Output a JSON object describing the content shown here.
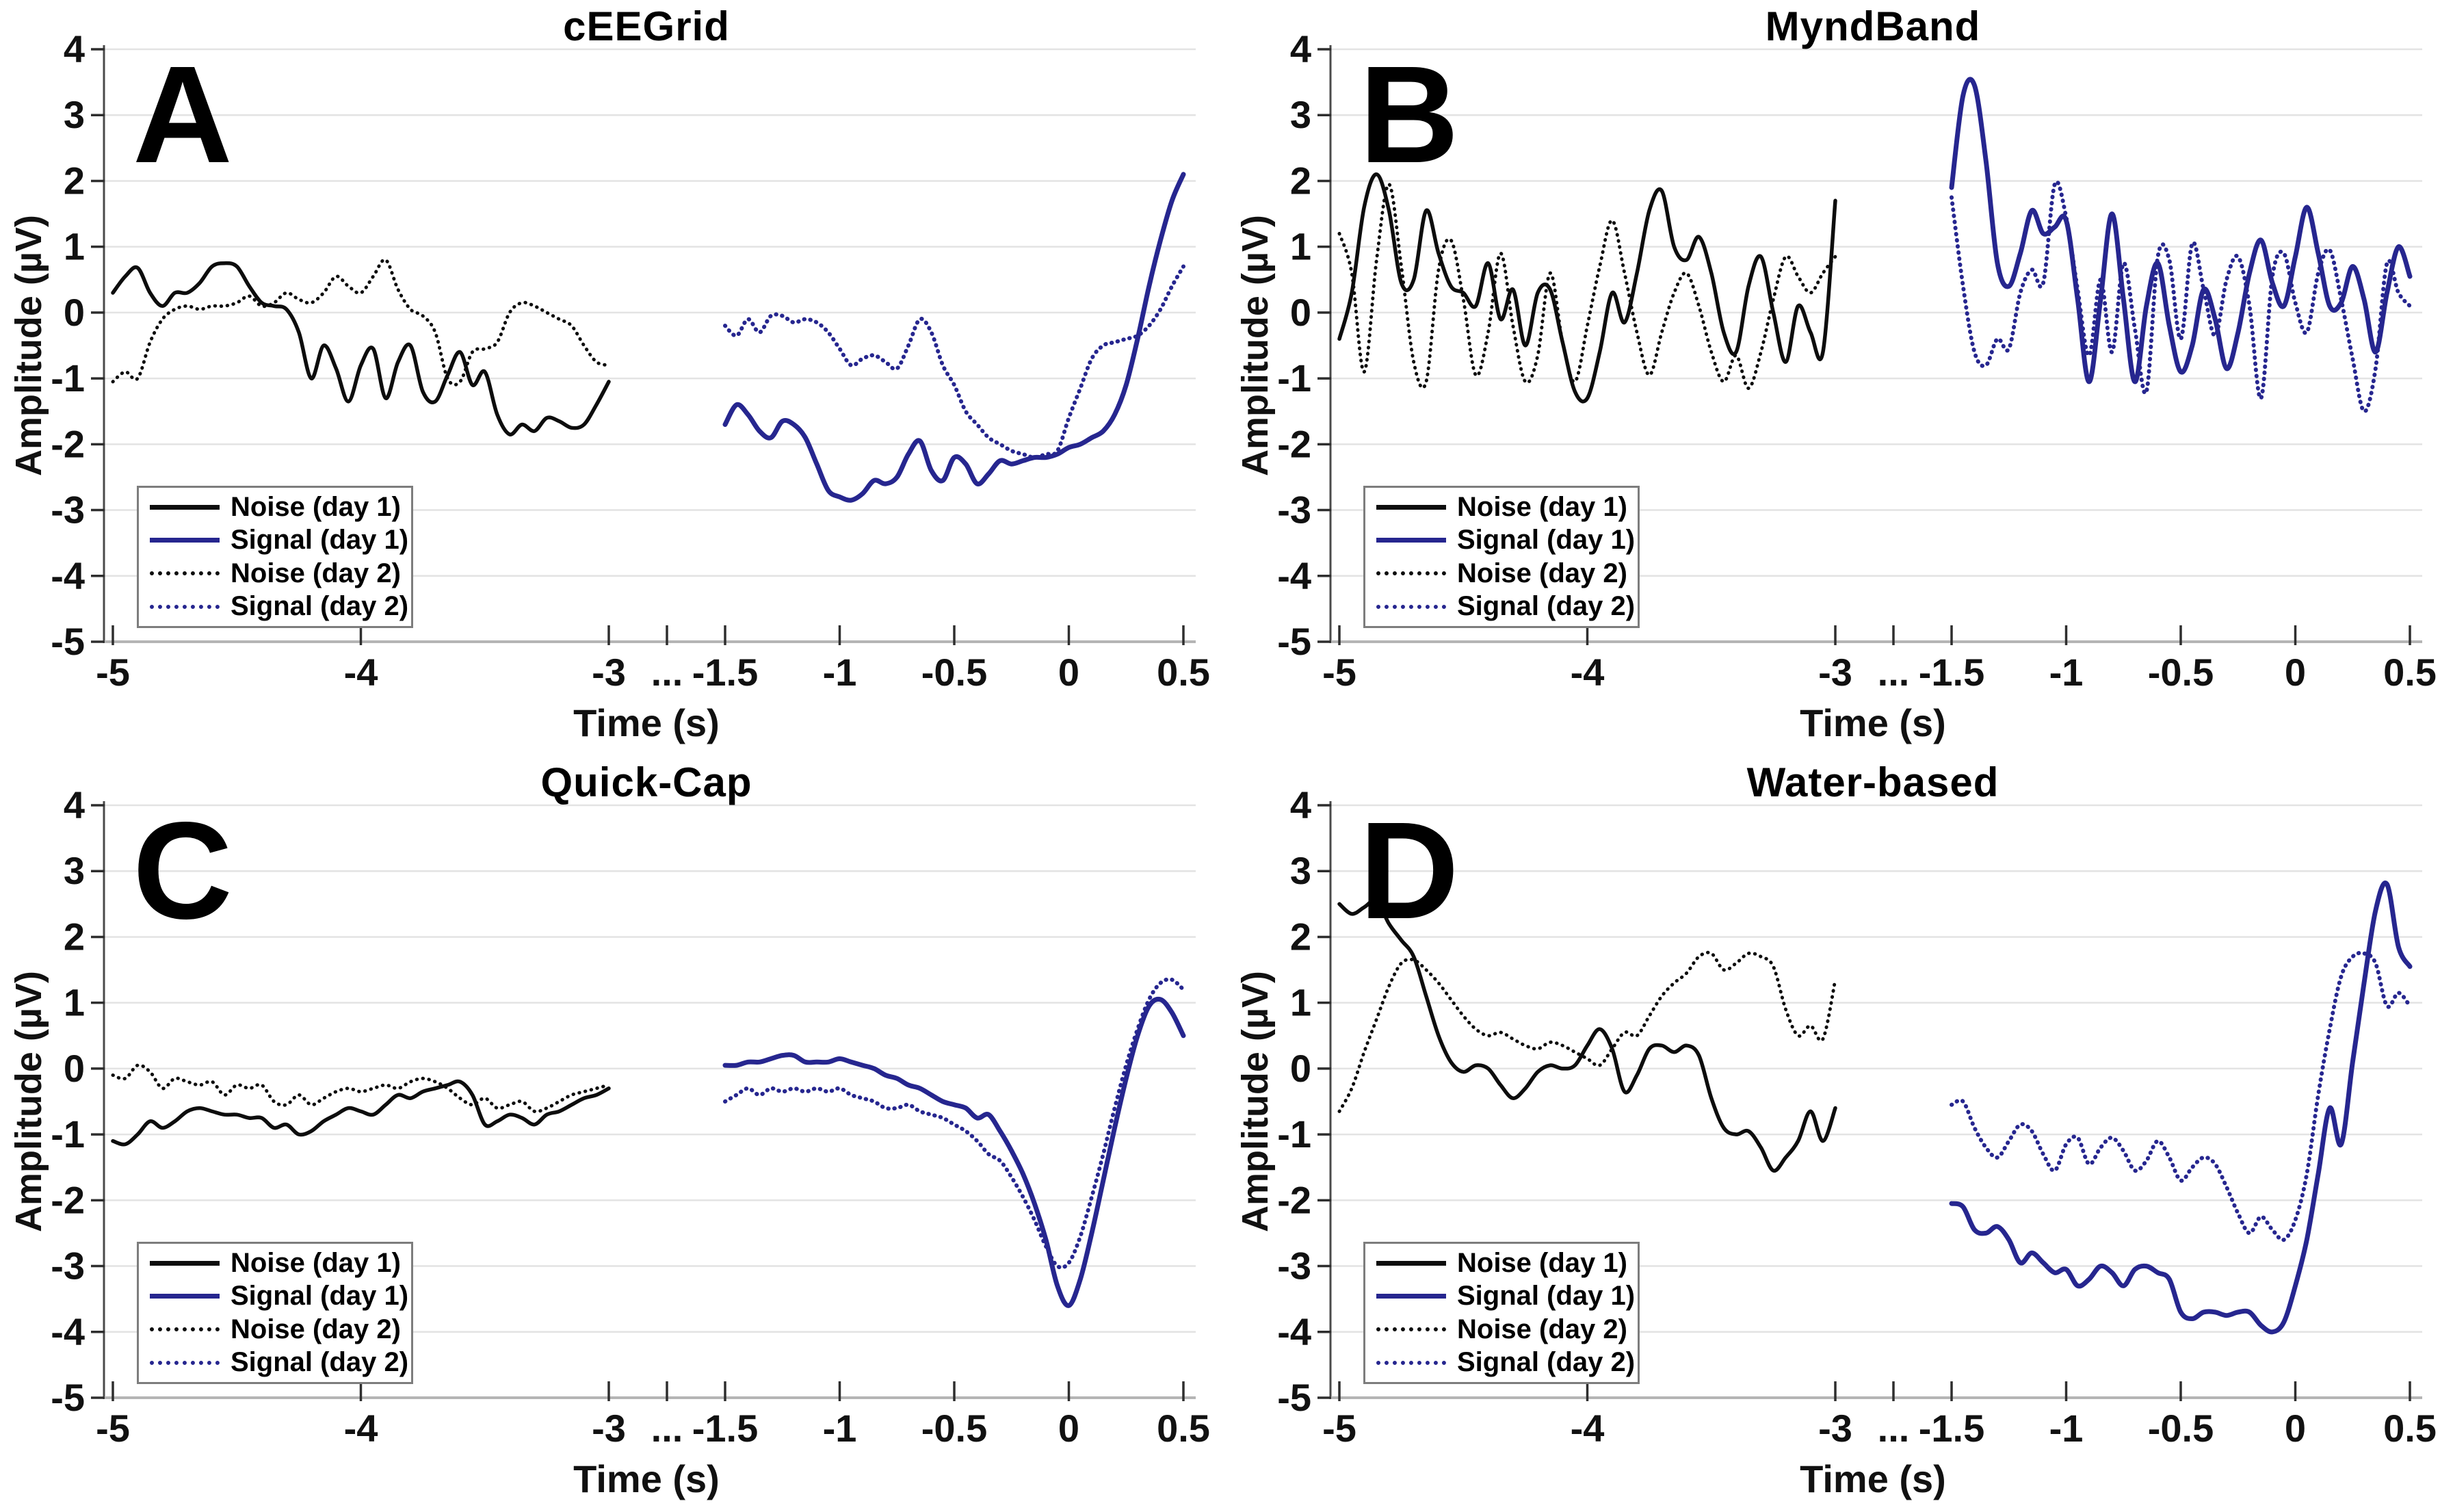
{
  "figure": {
    "background": "#ffffff",
    "y_axis_label": "Amplitude (µV)",
    "x_axis_label": "Time (s)",
    "y_ticks": [
      4,
      3,
      2,
      1,
      0,
      -1,
      -2,
      -3,
      -4,
      -5
    ],
    "x_ticks_left": [
      "-5",
      "-4",
      "-3"
    ],
    "x_break_label": "...",
    "x_ticks_right": [
      "-1.5",
      "-1",
      "-0.5",
      "0",
      "0.5"
    ],
    "colors": {
      "black": "#0d0d0d",
      "blue": "#26268f",
      "grid": "#e3e3e3",
      "axis_x": "#b5b5b5",
      "axis_y": "#4a4a4a",
      "tick": "#2e2e2e",
      "text": "#111111",
      "legend_border": "#7d7d7d"
    }
  },
  "legend": {
    "items": [
      {
        "label": "Noise (day 1)",
        "color": "black",
        "style": "solid"
      },
      {
        "label": "Signal (day 1)",
        "color": "blue",
        "style": "solid"
      },
      {
        "label": "Noise (day 2)",
        "color": "black",
        "style": "dotted"
      },
      {
        "label": "Signal (day 2)",
        "color": "blue",
        "style": "dotted"
      }
    ]
  },
  "chart_data": [
    {
      "type": "line",
      "panel_label": "A",
      "title": "cEEGrid",
      "xlabel": "Time (s)",
      "ylabel": "Amplitude (µV)",
      "ylim": [
        -5,
        4
      ],
      "x_axis": {
        "left_range": [
          -5,
          -3
        ],
        "right_range": [
          -1.5,
          0.5
        ],
        "break": true,
        "step": 0.05
      },
      "grid": "horizontal",
      "legend_position": "lower-left",
      "series": [
        {
          "name": "Noise (day 1)",
          "color": "black",
          "style": "solid",
          "segment": "left",
          "x_start": -5,
          "x_step": 0.05,
          "values": [
            0.3,
            0.55,
            0.68,
            0.3,
            0.1,
            0.3,
            0.3,
            0.45,
            0.7,
            0.75,
            0.7,
            0.4,
            0.15,
            0.1,
            0.05,
            -0.3,
            -1.0,
            -0.5,
            -0.85,
            -1.35,
            -0.8,
            -0.55,
            -1.3,
            -0.75,
            -0.5,
            -1.2,
            -1.35,
            -0.95,
            -0.6,
            -1.1,
            -0.9,
            -1.55,
            -1.85,
            -1.7,
            -1.8,
            -1.6,
            -1.65,
            -1.75,
            -1.7,
            -1.4,
            -1.05
          ]
        },
        {
          "name": "Signal (day 1)",
          "color": "blue",
          "style": "solid",
          "segment": "right",
          "x_start": -1.5,
          "x_step": 0.05,
          "values": [
            -1.7,
            -1.4,
            -1.55,
            -1.8,
            -1.9,
            -1.65,
            -1.7,
            -1.9,
            -2.3,
            -2.7,
            -2.8,
            -2.85,
            -2.75,
            -2.55,
            -2.6,
            -2.5,
            -2.15,
            -1.95,
            -2.4,
            -2.55,
            -2.2,
            -2.3,
            -2.6,
            -2.45,
            -2.25,
            -2.3,
            -2.25,
            -2.2,
            -2.2,
            -2.15,
            -2.05,
            -2.0,
            -1.9,
            -1.8,
            -1.55,
            -1.1,
            -0.4,
            0.4,
            1.1,
            1.7,
            2.1
          ]
        },
        {
          "name": "Noise (day 2)",
          "color": "black",
          "style": "dotted",
          "segment": "left",
          "x_start": -5,
          "x_step": 0.05,
          "values": [
            -1.05,
            -0.9,
            -1.0,
            -0.45,
            -0.1,
            0.05,
            0.1,
            0.05,
            0.1,
            0.1,
            0.15,
            0.25,
            0.1,
            0.15,
            0.3,
            0.2,
            0.15,
            0.3,
            0.55,
            0.4,
            0.3,
            0.55,
            0.8,
            0.35,
            0.05,
            -0.05,
            -0.3,
            -1.0,
            -1.05,
            -0.6,
            -0.55,
            -0.45,
            0.0,
            0.15,
            0.1,
            0.0,
            -0.1,
            -0.2,
            -0.5,
            -0.75,
            -0.8
          ]
        },
        {
          "name": "Signal (day 2)",
          "color": "blue",
          "style": "dotted",
          "segment": "right",
          "x_start": -1.5,
          "x_step": 0.05,
          "values": [
            -0.2,
            -0.35,
            -0.1,
            -0.3,
            -0.05,
            -0.05,
            -0.15,
            -0.1,
            -0.15,
            -0.3,
            -0.55,
            -0.8,
            -0.7,
            -0.65,
            -0.75,
            -0.85,
            -0.5,
            -0.1,
            -0.3,
            -0.8,
            -1.1,
            -1.5,
            -1.7,
            -1.9,
            -2.0,
            -2.1,
            -2.15,
            -2.2,
            -2.15,
            -2.1,
            -1.6,
            -1.15,
            -0.7,
            -0.5,
            -0.45,
            -0.4,
            -0.35,
            -0.2,
            0.05,
            0.4,
            0.7
          ]
        }
      ]
    },
    {
      "type": "line",
      "panel_label": "B",
      "title": "MyndBand",
      "xlabel": "Time (s)",
      "ylabel": "Amplitude (µV)",
      "ylim": [
        -5,
        4
      ],
      "x_axis": {
        "left_range": [
          -5,
          -3
        ],
        "right_range": [
          -1.5,
          0.5
        ],
        "break": true,
        "step": 0.05
      },
      "grid": "horizontal",
      "legend_position": "lower-left",
      "series": [
        {
          "name": "Noise (day 1)",
          "color": "black",
          "style": "solid",
          "segment": "left",
          "x_start": -5,
          "x_step": 0.05,
          "values": [
            -0.4,
            0.3,
            1.6,
            2.1,
            1.55,
            0.45,
            0.5,
            1.55,
            0.9,
            0.4,
            0.3,
            0.1,
            0.75,
            -0.1,
            0.35,
            -0.5,
            0.3,
            0.35,
            -0.45,
            -1.2,
            -1.3,
            -0.6,
            0.3,
            -0.15,
            0.6,
            1.55,
            1.85,
            1.0,
            0.8,
            1.15,
            0.6,
            -0.3,
            -0.6,
            0.4,
            0.85,
            0.0,
            -0.75,
            0.1,
            -0.3,
            -0.6,
            1.7
          ]
        },
        {
          "name": "Signal (day 1)",
          "color": "blue",
          "style": "solid",
          "segment": "right",
          "x_start": -1.5,
          "x_step": 0.05,
          "values": [
            1.9,
            3.3,
            3.45,
            2.3,
            0.75,
            0.4,
            0.9,
            1.55,
            1.2,
            1.3,
            1.4,
            0.2,
            -1.05,
            0.2,
            1.5,
            0.2,
            -1.05,
            0.1,
            0.75,
            -0.2,
            -0.9,
            -0.5,
            0.35,
            -0.1,
            -0.85,
            -0.3,
            0.6,
            1.1,
            0.45,
            0.1,
            0.85,
            1.6,
            0.9,
            0.1,
            0.15,
            0.7,
            0.2,
            -0.6,
            0.3,
            1.0,
            0.55
          ]
        },
        {
          "name": "Noise (day 2)",
          "color": "black",
          "style": "dotted",
          "segment": "left",
          "x_start": -5,
          "x_step": 0.05,
          "values": [
            1.2,
            0.6,
            -0.9,
            0.8,
            1.95,
            0.7,
            -0.75,
            -1.05,
            0.65,
            1.1,
            0.2,
            -0.95,
            -0.3,
            0.9,
            -0.2,
            -1.05,
            -0.65,
            0.6,
            -0.45,
            -1.05,
            -0.2,
            0.7,
            1.4,
            0.6,
            -0.3,
            -0.95,
            -0.3,
            0.3,
            0.6,
            0.1,
            -0.6,
            -1.05,
            -0.65,
            -1.15,
            -0.6,
            0.2,
            0.85,
            0.55,
            0.3,
            0.6,
            0.85
          ]
        },
        {
          "name": "Signal (day 2)",
          "color": "blue",
          "style": "dotted",
          "segment": "right",
          "x_start": -1.5,
          "x_step": 0.05,
          "values": [
            1.75,
            0.4,
            -0.6,
            -0.8,
            -0.4,
            -0.55,
            0.3,
            0.65,
            0.45,
            1.95,
            1.45,
            0.35,
            -0.65,
            0.5,
            -0.6,
            0.75,
            -0.25,
            -1.2,
            0.85,
            0.8,
            -0.4,
            1.05,
            0.35,
            -0.35,
            0.5,
            0.85,
            0.1,
            -1.3,
            0.55,
            0.9,
            0.15,
            -0.3,
            0.6,
            0.95,
            0.2,
            -0.7,
            -1.5,
            -0.85,
            0.75,
            0.3,
            0.1
          ]
        }
      ]
    },
    {
      "type": "line",
      "panel_label": "C",
      "title": "Quick-Cap",
      "xlabel": "Time (s)",
      "ylabel": "Amplitude (µV)",
      "ylim": [
        -5,
        4
      ],
      "x_axis": {
        "left_range": [
          -5,
          -3
        ],
        "right_range": [
          -1.5,
          0.5
        ],
        "break": true,
        "step": 0.05
      },
      "grid": "horizontal",
      "legend_position": "lower-left",
      "series": [
        {
          "name": "Noise (day 1)",
          "color": "black",
          "style": "solid",
          "segment": "left",
          "x_start": -5,
          "x_step": 0.05,
          "values": [
            -1.1,
            -1.15,
            -1.0,
            -0.8,
            -0.9,
            -0.8,
            -0.65,
            -0.6,
            -0.65,
            -0.7,
            -0.7,
            -0.75,
            -0.75,
            -0.9,
            -0.85,
            -1.0,
            -0.95,
            -0.8,
            -0.7,
            -0.6,
            -0.65,
            -0.7,
            -0.55,
            -0.4,
            -0.45,
            -0.35,
            -0.3,
            -0.25,
            -0.2,
            -0.4,
            -0.85,
            -0.8,
            -0.7,
            -0.75,
            -0.85,
            -0.7,
            -0.65,
            -0.55,
            -0.45,
            -0.4,
            -0.3
          ]
        },
        {
          "name": "Signal (day 1)",
          "color": "blue",
          "style": "solid",
          "segment": "right",
          "x_start": -1.5,
          "x_step": 0.05,
          "values": [
            0.05,
            0.05,
            0.1,
            0.1,
            0.15,
            0.2,
            0.2,
            0.1,
            0.1,
            0.1,
            0.15,
            0.1,
            0.05,
            0.0,
            -0.1,
            -0.15,
            -0.25,
            -0.3,
            -0.4,
            -0.5,
            -0.55,
            -0.6,
            -0.75,
            -0.7,
            -0.95,
            -1.25,
            -1.6,
            -2.05,
            -2.6,
            -3.3,
            -3.6,
            -3.2,
            -2.5,
            -1.7,
            -0.9,
            -0.15,
            0.5,
            0.95,
            1.05,
            0.85,
            0.5
          ]
        },
        {
          "name": "Noise (day 2)",
          "color": "black",
          "style": "dotted",
          "segment": "left",
          "x_start": -5,
          "x_step": 0.05,
          "values": [
            -0.1,
            -0.15,
            0.05,
            -0.05,
            -0.3,
            -0.15,
            -0.2,
            -0.25,
            -0.2,
            -0.4,
            -0.25,
            -0.3,
            -0.25,
            -0.5,
            -0.55,
            -0.4,
            -0.55,
            -0.45,
            -0.35,
            -0.3,
            -0.35,
            -0.3,
            -0.25,
            -0.3,
            -0.2,
            -0.15,
            -0.2,
            -0.3,
            -0.45,
            -0.55,
            -0.45,
            -0.6,
            -0.55,
            -0.5,
            -0.65,
            -0.6,
            -0.5,
            -0.4,
            -0.35,
            -0.3,
            -0.25
          ]
        },
        {
          "name": "Signal (day 2)",
          "color": "blue",
          "style": "dotted",
          "segment": "right",
          "x_start": -1.5,
          "x_step": 0.05,
          "values": [
            -0.5,
            -0.4,
            -0.3,
            -0.4,
            -0.3,
            -0.35,
            -0.3,
            -0.35,
            -0.3,
            -0.35,
            -0.3,
            -0.4,
            -0.45,
            -0.5,
            -0.6,
            -0.6,
            -0.55,
            -0.65,
            -0.7,
            -0.75,
            -0.85,
            -0.95,
            -1.1,
            -1.3,
            -1.4,
            -1.65,
            -1.95,
            -2.3,
            -2.7,
            -3.0,
            -2.95,
            -2.55,
            -1.95,
            -1.3,
            -0.6,
            0.05,
            0.6,
            1.05,
            1.3,
            1.35,
            1.2
          ]
        }
      ]
    },
    {
      "type": "line",
      "panel_label": "D",
      "title": "Water-based",
      "xlabel": "Time (s)",
      "ylabel": "Amplitude (µV)",
      "ylim": [
        -5,
        4
      ],
      "x_axis": {
        "left_range": [
          -5,
          -3
        ],
        "right_range": [
          -1.5,
          0.5
        ],
        "break": true,
        "step": 0.05
      },
      "grid": "horizontal",
      "legend_position": "lower-left",
      "series": [
        {
          "name": "Noise (day 1)",
          "color": "black",
          "style": "solid",
          "segment": "left",
          "x_start": -5,
          "x_step": 0.05,
          "values": [
            2.5,
            2.35,
            2.45,
            2.55,
            2.2,
            1.95,
            1.7,
            1.1,
            0.5,
            0.1,
            -0.05,
            0.05,
            0.0,
            -0.25,
            -0.45,
            -0.3,
            -0.05,
            0.05,
            0.0,
            0.05,
            0.35,
            0.6,
            0.3,
            -0.35,
            -0.1,
            0.3,
            0.35,
            0.25,
            0.35,
            0.2,
            -0.45,
            -0.9,
            -1.0,
            -0.95,
            -1.2,
            -1.55,
            -1.35,
            -1.1,
            -0.65,
            -1.1,
            -0.6
          ]
        },
        {
          "name": "Signal (day 1)",
          "color": "blue",
          "style": "solid",
          "segment": "right",
          "x_start": -1.5,
          "x_step": 0.05,
          "values": [
            -2.05,
            -2.1,
            -2.45,
            -2.5,
            -2.4,
            -2.6,
            -2.95,
            -2.8,
            -2.95,
            -3.1,
            -3.05,
            -3.3,
            -3.2,
            -3.0,
            -3.1,
            -3.3,
            -3.05,
            -3.0,
            -3.1,
            -3.2,
            -3.7,
            -3.8,
            -3.7,
            -3.7,
            -3.75,
            -3.7,
            -3.7,
            -3.9,
            -4.0,
            -3.85,
            -3.3,
            -2.6,
            -1.6,
            -0.6,
            -1.15,
            0.1,
            1.3,
            2.4,
            2.8,
            1.85,
            1.55
          ]
        },
        {
          "name": "Noise (day 2)",
          "color": "black",
          "style": "dotted",
          "segment": "left",
          "x_start": -5,
          "x_step": 0.05,
          "values": [
            -0.65,
            -0.3,
            0.25,
            0.75,
            1.25,
            1.6,
            1.65,
            1.5,
            1.3,
            1.05,
            0.8,
            0.6,
            0.5,
            0.55,
            0.45,
            0.35,
            0.3,
            0.4,
            0.35,
            0.25,
            0.15,
            0.05,
            0.3,
            0.55,
            0.5,
            0.8,
            1.1,
            1.3,
            1.45,
            1.7,
            1.75,
            1.5,
            1.6,
            1.75,
            1.7,
            1.55,
            0.9,
            0.5,
            0.65,
            0.45,
            1.35
          ]
        },
        {
          "name": "Signal (day 2)",
          "color": "blue",
          "style": "dotted",
          "segment": "right",
          "x_start": -1.5,
          "x_step": 0.05,
          "values": [
            -0.55,
            -0.5,
            -0.9,
            -1.2,
            -1.35,
            -1.1,
            -0.85,
            -0.95,
            -1.3,
            -1.55,
            -1.15,
            -1.05,
            -1.45,
            -1.2,
            -1.05,
            -1.25,
            -1.55,
            -1.4,
            -1.1,
            -1.35,
            -1.7,
            -1.5,
            -1.35,
            -1.45,
            -1.8,
            -2.2,
            -2.5,
            -2.25,
            -2.45,
            -2.6,
            -2.3,
            -1.6,
            -0.4,
            0.6,
            1.4,
            1.7,
            1.75,
            1.6,
            0.95,
            1.15,
            0.95
          ]
        }
      ]
    }
  ]
}
